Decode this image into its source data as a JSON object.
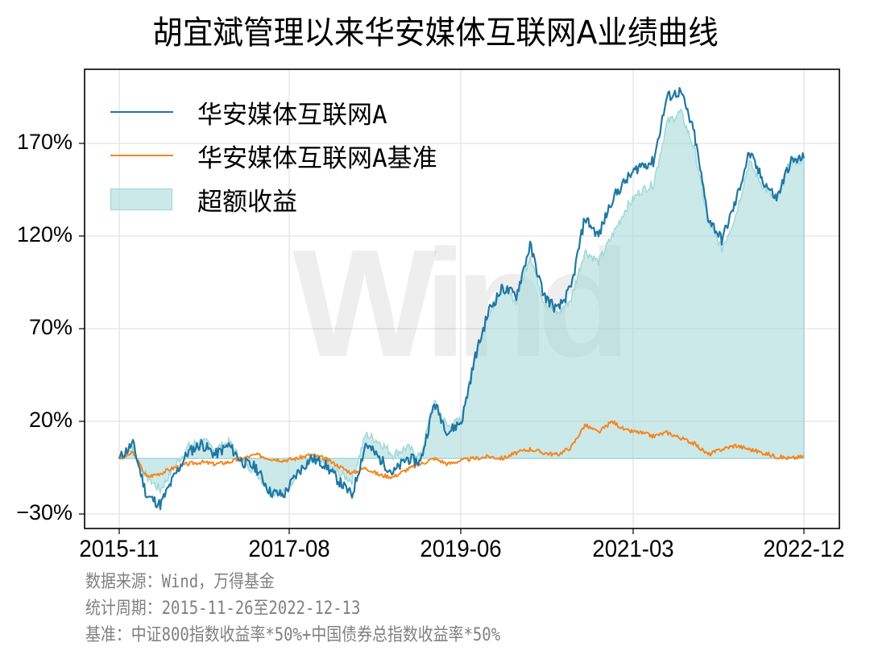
{
  "title": "胡宜斌管理以来华安媒体互联网A业绩曲线",
  "legend": {
    "items": [
      {
        "label": "华安媒体互联网A",
        "type": "line",
        "color": "#1f77a4"
      },
      {
        "label": "华安媒体互联网A基准",
        "type": "line",
        "color": "#f5861f"
      },
      {
        "label": "超额收益",
        "type": "patch",
        "color": "#a2d7d8"
      }
    ]
  },
  "axes": {
    "yticks": [
      "170%",
      "120%",
      "70%",
      "20%",
      "−30%"
    ],
    "xticks": [
      "2015-11",
      "2017-08",
      "2019-06",
      "2021-03",
      "2022-12"
    ]
  },
  "watermark": "Wind",
  "notes": [
    "数据来源：Wind，万得基金",
    "统计周期：2015-11-26至2022-12-13",
    "基准：中证800指数收益率*50%+中国债券总指数收益率*50%"
  ],
  "chart_data": {
    "type": "line",
    "title": "胡宜斌管理以来华安媒体互联网A业绩曲线",
    "xlabel": "",
    "ylabel": "",
    "x_range": [
      "2015-11-26",
      "2022-12-13"
    ],
    "ylim": [
      -35,
      205
    ],
    "yticks": [
      -30,
      20,
      70,
      120,
      170
    ],
    "xticks": [
      "2015-11",
      "2017-08",
      "2019-06",
      "2021-03",
      "2022-12"
    ],
    "grid": true,
    "legend_position": "upper left",
    "x": [
      "2015-11",
      "2015-12",
      "2016-01",
      "2016-02",
      "2016-04",
      "2016-06",
      "2016-08",
      "2016-10",
      "2016-12",
      "2017-02",
      "2017-04",
      "2017-06",
      "2017-08",
      "2017-10",
      "2017-12",
      "2018-02",
      "2018-04",
      "2018-06",
      "2018-08",
      "2018-10",
      "2018-12",
      "2019-02",
      "2019-03",
      "2019-04",
      "2019-06",
      "2019-08",
      "2019-10",
      "2019-12",
      "2020-02",
      "2020-03",
      "2020-05",
      "2020-07",
      "2020-08",
      "2020-10",
      "2020-12",
      "2021-02",
      "2021-03",
      "2021-05",
      "2021-07",
      "2021-09",
      "2021-10",
      "2021-12",
      "2022-02",
      "2022-03",
      "2022-04",
      "2022-05",
      "2022-07",
      "2022-08",
      "2022-10",
      "2022-11",
      "2022-12"
    ],
    "series": [
      {
        "name": "华安媒体互联网A",
        "color": "#1f77a4",
        "values": [
          0,
          8,
          -20,
          -25,
          -10,
          3,
          8,
          2,
          7,
          -2,
          -5,
          -18,
          -20,
          -8,
          0,
          -3,
          -12,
          -20,
          8,
          0,
          -8,
          0,
          -2,
          30,
          14,
          20,
          55,
          80,
          92,
          88,
          115,
          88,
          80,
          92,
          130,
          120,
          140,
          150,
          158,
          160,
          195,
          198,
          175,
          130,
          118,
          138,
          165,
          150,
          140,
          160,
          162
        ]
      },
      {
        "name": "华安媒体互联网A基准",
        "color": "#f5861f",
        "values": [
          0,
          3,
          -10,
          -8,
          -5,
          -3,
          -2,
          -3,
          -2,
          0,
          2,
          0,
          -1,
          0,
          2,
          0,
          -4,
          -8,
          -5,
          -9,
          -10,
          -6,
          -3,
          0,
          -3,
          -1,
          0,
          1,
          0,
          3,
          5,
          3,
          2,
          6,
          18,
          14,
          20,
          15,
          14,
          12,
          14,
          11,
          8,
          2,
          5,
          7,
          5,
          3,
          1,
          0,
          1
        ]
      },
      {
        "name": "超额收益",
        "color": "#a2d7d8",
        "type": "area",
        "values": [
          0,
          5,
          -10,
          -17,
          -5,
          6,
          10,
          5,
          9,
          -2,
          -7,
          -18,
          -19,
          -8,
          -2,
          -3,
          -8,
          -12,
          13,
          9,
          2,
          6,
          1,
          30,
          17,
          21,
          55,
          79,
          92,
          85,
          110,
          85,
          78,
          86,
          112,
          106,
          120,
          135,
          144,
          148,
          181,
          187,
          167,
          128,
          113,
          131,
          160,
          147,
          139,
          160,
          161
        ]
      }
    ]
  }
}
